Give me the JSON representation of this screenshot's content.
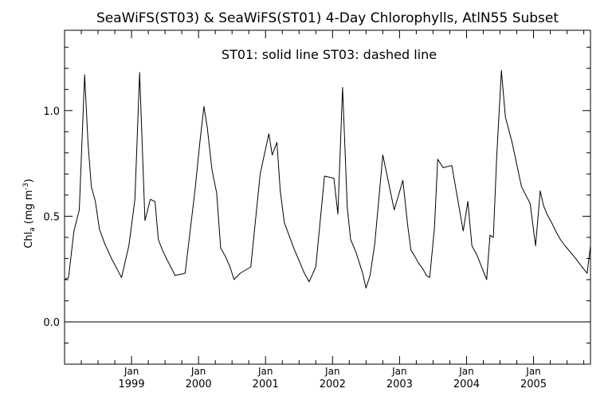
{
  "chart_data": {
    "type": "line",
    "title": "SeaWiFS(ST03) & SeaWiFS(ST01) 4-Day Chlorophylls, AtlN55 Subset",
    "annotation": "ST01: solid line   ST03: dashed line",
    "ylabel_main": "Chl",
    "ylabel_sub": "a",
    "ylabel_units": "(mg m",
    "ylabel_exp": "-3",
    "ylabel_close": ")",
    "ylim": [
      -0.2,
      1.38
    ],
    "xlim": [
      1998.0,
      2005.85
    ],
    "y_ticks": [
      0.0,
      0.5,
      1.0
    ],
    "y_tick_labels": [
      "0.0",
      "0.5",
      "1.0"
    ],
    "y_minor_step": 0.1,
    "x_ticks": [
      1999,
      2000,
      2001,
      2002,
      2003,
      2004,
      2005
    ],
    "x_tick_month": "Jan",
    "x_tick_years": [
      "1999",
      "2000",
      "2001",
      "2002",
      "2003",
      "2004",
      "2005"
    ],
    "zero_line": true,
    "grid": false,
    "series": [
      {
        "style": "solid",
        "x": [
          1998.0,
          1998.06,
          1998.14,
          1998.22,
          1998.3,
          1998.35,
          1998.4,
          1998.46,
          1998.52,
          1998.6,
          1998.7,
          1998.85,
          1998.96,
          1999.05,
          1999.12,
          1999.2,
          1999.28,
          1999.35,
          1999.4,
          1999.46,
          1999.52,
          1999.57,
          1999.65,
          1999.8,
          1999.95,
          2000.02,
          2000.08,
          2000.13,
          2000.2,
          2000.27,
          2000.33,
          2000.4,
          2000.47,
          2000.53,
          2000.62,
          2000.78,
          2000.92,
          2001.05,
          2001.1,
          2001.17,
          2001.22,
          2001.28,
          2001.35,
          2001.42,
          2001.5,
          2001.58,
          2001.65,
          2001.75,
          2001.88,
          2002.02,
          2002.08,
          2002.15,
          2002.22,
          2002.27,
          2002.35,
          2002.4,
          2002.45,
          2002.5,
          2002.56,
          2002.63,
          2002.75,
          2002.92,
          2003.05,
          2003.12,
          2003.17,
          2003.23,
          2003.28,
          2003.35,
          2003.4,
          2003.45,
          2003.52,
          2003.57,
          2003.65,
          2003.78,
          2003.95,
          2004.02,
          2004.08,
          2004.15,
          2004.2,
          2004.25,
          2004.3,
          2004.35,
          2004.4,
          2004.45,
          2004.52,
          2004.58,
          2004.68,
          2004.82,
          2004.95,
          2005.03,
          2005.1,
          2005.15,
          2005.2,
          2005.27,
          2005.33,
          2005.4,
          2005.47,
          2005.55,
          2005.63,
          2005.7,
          2005.75,
          2005.8,
          2005.85
        ],
        "y": [
          0.2,
          0.21,
          0.43,
          0.53,
          1.17,
          0.85,
          0.64,
          0.57,
          0.44,
          0.37,
          0.3,
          0.21,
          0.36,
          0.58,
          1.18,
          0.48,
          0.58,
          0.57,
          0.39,
          0.34,
          0.3,
          0.27,
          0.22,
          0.23,
          0.63,
          0.85,
          1.02,
          0.92,
          0.72,
          0.61,
          0.35,
          0.31,
          0.26,
          0.2,
          0.23,
          0.26,
          0.7,
          0.89,
          0.79,
          0.85,
          0.62,
          0.47,
          0.41,
          0.35,
          0.29,
          0.23,
          0.19,
          0.26,
          0.69,
          0.68,
          0.51,
          1.11,
          0.54,
          0.39,
          0.33,
          0.28,
          0.23,
          0.16,
          0.22,
          0.37,
          0.79,
          0.53,
          0.67,
          0.46,
          0.34,
          0.31,
          0.28,
          0.25,
          0.22,
          0.21,
          0.44,
          0.77,
          0.73,
          0.74,
          0.43,
          0.57,
          0.36,
          0.32,
          0.28,
          0.24,
          0.2,
          0.41,
          0.4,
          0.78,
          1.19,
          0.97,
          0.85,
          0.64,
          0.56,
          0.36,
          0.62,
          0.55,
          0.51,
          0.47,
          0.43,
          0.39,
          0.36,
          0.33,
          0.3,
          0.27,
          0.25,
          0.23,
          0.36
        ]
      }
    ]
  }
}
